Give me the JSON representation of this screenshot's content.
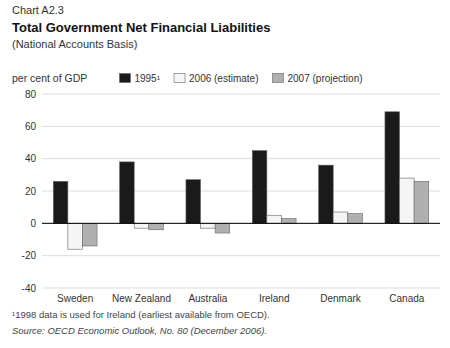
{
  "chart_data": {
    "type": "bar",
    "title": "Total Government Net Financial Liabilities",
    "subtitle": "(National Accounts Basis)",
    "ylabel": "per cent of GDP",
    "annotations": [
      "Chart A2.3",
      "¹1998 data is used for Ireland (earliest available from OECD).",
      "Source: OECD Economic Outlook, No. 80 (December 2006)."
    ],
    "categories": [
      "Sweden",
      "New Zealand",
      "Australia",
      "Ireland",
      "Denmark",
      "Canada"
    ],
    "series": [
      {
        "name": "1995¹",
        "color": "#1a1a1a",
        "values": [
          26,
          38,
          27,
          45,
          36,
          69
        ]
      },
      {
        "name": "2006 (estimate)",
        "color": "#f5f5f5",
        "values": [
          -16,
          -3,
          -3,
          5,
          7,
          28
        ]
      },
      {
        "name": "2007 (projection)",
        "color": "#b0b0b0",
        "values": [
          -14,
          -4,
          -6,
          3,
          6,
          26
        ]
      }
    ],
    "ylim": [
      -40,
      80
    ],
    "yticks": [
      -40,
      -20,
      0,
      20,
      40,
      60,
      80
    ],
    "grid": true,
    "legend": "top"
  }
}
